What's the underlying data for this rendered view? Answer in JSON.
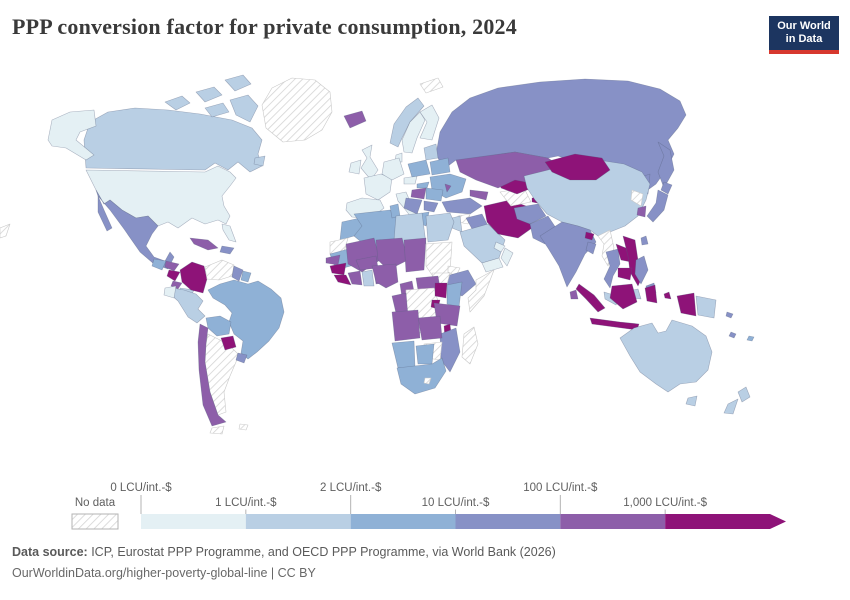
{
  "title": "PPP conversion factor for private consumption, 2024",
  "logo": {
    "line1": "Our World",
    "line2": "in Data",
    "bg_color": "#1c3560",
    "accent_color": "#d7382e"
  },
  "legend": {
    "no_data_label": "No data",
    "tick_labels": [
      "0 LCU/int.-$",
      "1 LCU/int.-$",
      "2 LCU/int.-$",
      "10 LCU/int.-$",
      "100 LCU/int.-$",
      "1,000 LCU/int.-$"
    ],
    "colors": [
      "#e4f0f4",
      "#b9cfe4",
      "#8fb1d6",
      "#8791c6",
      "#8d5ea9",
      "#8e1378"
    ],
    "no_data_pattern": "diagonal-hatch",
    "text_color": "#5f5f5f",
    "tick_color": "#b3b3b3"
  },
  "footer": {
    "source_label": "Data source:",
    "source_text": " ICP, Eurostat PPP Programme, and OECD PPP Programme, via World Bank (2026)",
    "license_line": "OurWorldinData.org/higher-poverty-global-line | CC BY"
  },
  "map": {
    "regions": {
      "greenland": "nd",
      "canada": 1,
      "alaska": 0,
      "united-states": 0,
      "mexico": 3,
      "guatemala": 2,
      "honduras": 4,
      "nicaragua": 5,
      "costa-rica": 4,
      "panama": 1,
      "cuba": 4,
      "hispaniola": 3,
      "argentina": "nd",
      "chile": 4,
      "tierra-del-fuego": "nd",
      "falkland-islands": "nd",
      "brazil": 2,
      "peru": 1,
      "ecuador": 0,
      "bolivia": 2,
      "paraguay": 5,
      "uruguay": 3,
      "colombia": 5,
      "venezuela": "nd",
      "guyana": 3,
      "suriname": 2,
      "pacific-sliver": "nd",
      "iceland": 4,
      "svalbard": "nd",
      "norway": 1,
      "sweden": 0,
      "finland": 0,
      "united-kingdom": 0,
      "ireland": 0,
      "denmark": 0,
      "spain-portugal": 0,
      "france": 0,
      "germany": 0,
      "italy": 0,
      "czechia": 0,
      "poland": 2,
      "baltics": 1,
      "belarus": 2,
      "ukraine": 2,
      "slovakia": 2,
      "hungary": 4,
      "romania": 2,
      "moldova": 4,
      "balkans": 3,
      "bulgaria": 3,
      "greece": 2,
      "russia": 3,
      "turkey": 3,
      "caucasus": 4,
      "syria": "nd",
      "iraq": 3,
      "jordan-israel": 1,
      "saudi-arabia": 1,
      "yemen": 0,
      "oman": 0,
      "uae": 0,
      "iran": 5,
      "turkmenistan": "nd",
      "uzbekistan": 5,
      "kazakhstan": 4,
      "kyrgyzstan": "nd",
      "tajikistan": 5,
      "afghanistan": 3,
      "pakistan": 3,
      "india": 3,
      "bhutan": 5,
      "bangladesh": 3,
      "sri-lanka": 4,
      "myanmar": "nd",
      "thailand": 3,
      "laos": 5,
      "vietnam": 5,
      "cambodia": 5,
      "malaysia": 1,
      "china": 1,
      "mongolia": 5,
      "north-korea": "nd",
      "south-korea": 4,
      "japan": 3,
      "taiwan": 3,
      "philippines": 3,
      "indonesia": 5,
      "papua-new-guinea": 1,
      "solomon-islands": 3,
      "vanuatu": 3,
      "fiji": 2,
      "australia": 1,
      "tasmania": 1,
      "new-zealand": 1,
      "morocco": 2,
      "western-sahara": "nd",
      "algeria": 2,
      "tunisia": 2,
      "libya": 1,
      "egypt": 1,
      "mauritania": 2,
      "mali": 4,
      "niger": 4,
      "chad": 4,
      "sudan": "nd",
      "eritrea": "nd",
      "ethiopia": 3,
      "somalia": "nd",
      "south-sudan": "nd",
      "senegal": 4,
      "guinea": 5,
      "sierra-leone-liberia": 5,
      "cote-divoire": 4,
      "ghana": 1,
      "benin-togo": 4,
      "burkina-faso": 4,
      "nigeria": 4,
      "cameroon": 4,
      "central-african-republic": 4,
      "dr-congo": "nd",
      "congo-gabon": 4,
      "uganda": 5,
      "kenya": 2,
      "rwanda-burundi": 5,
      "tanzania": 4,
      "malawi": 5,
      "mozambique": 3,
      "zimbabwe": "nd",
      "zambia": 4,
      "angola": 4,
      "namibia": 2,
      "botswana": 2,
      "south-africa": 2,
      "lesotho": "nd",
      "madagascar": "nd"
    }
  },
  "chart_data": {
    "type": "choropleth",
    "title": "PPP conversion factor for private consumption, 2024",
    "unit": "LCU/int.-$",
    "scale": "log-binned",
    "legend_position": "bottom",
    "bins": [
      {
        "range": "0–1 LCU/int.-$",
        "color": "#e4f0f4",
        "countries": [
          "United States",
          "United Kingdom",
          "Ireland",
          "France",
          "Germany",
          "Spain",
          "Portugal",
          "Italy",
          "Sweden",
          "Finland",
          "Denmark",
          "Czechia",
          "Ecuador",
          "Yemen",
          "Oman",
          "United Arab Emirates"
        ]
      },
      {
        "range": "1–2 LCU/int.-$",
        "color": "#b9cfe4",
        "countries": [
          "Canada",
          "Norway",
          "Baltic states",
          "Australia",
          "New Zealand",
          "China",
          "Malaysia",
          "Saudi Arabia",
          "Jordan",
          "Israel",
          "Egypt",
          "Libya",
          "Ghana",
          "Panama",
          "Peru",
          "Papua New Guinea"
        ]
      },
      {
        "range": "2–10 LCU/int.-$",
        "color": "#8fb1d6",
        "countries": [
          "Brazil",
          "Bolivia",
          "Suriname",
          "Guatemala",
          "Morocco",
          "Algeria",
          "Tunisia",
          "Mauritania",
          "Kenya",
          "Namibia",
          "Botswana",
          "South Africa",
          "Poland",
          "Belarus",
          "Ukraine",
          "Romania",
          "Slovakia",
          "Greece",
          "Fiji"
        ]
      },
      {
        "range": "10–100 LCU/int.-$",
        "color": "#8791c6",
        "countries": [
          "Mexico",
          "Dominican Republic",
          "Uruguay",
          "Guyana",
          "Russia",
          "Turkey",
          "Iraq",
          "Afghanistan",
          "Pakistan",
          "India",
          "Bangladesh",
          "Thailand",
          "Japan",
          "Taiwan",
          "Philippines",
          "Ethiopia",
          "Mozambique",
          "Serbia",
          "Bulgaria",
          "Solomon Islands",
          "Vanuatu"
        ]
      },
      {
        "range": "100–1,000 LCU/int.-$",
        "color": "#8d5ea9",
        "countries": [
          "Chile",
          "Cuba",
          "Honduras",
          "Costa Rica",
          "Iceland",
          "Hungary",
          "Moldova",
          "Caucasus states",
          "Kazakhstan",
          "South Korea",
          "Sri Lanka",
          "Senegal",
          "Mali",
          "Burkina Faso",
          "Niger",
          "Chad",
          "Côte d'Ivoire",
          "Benin",
          "Togo",
          "Nigeria",
          "Cameroon",
          "Central African Republic",
          "Congo",
          "Gabon",
          "Angola",
          "Zambia",
          "Tanzania"
        ]
      },
      {
        "range": "1,000+ LCU/int.-$",
        "color": "#8e1378",
        "countries": [
          "Colombia",
          "Paraguay",
          "Nicaragua",
          "Guinea",
          "Sierra Leone",
          "Liberia",
          "Uganda",
          "Rwanda",
          "Burundi",
          "Malawi",
          "Iran",
          "Uzbekistan",
          "Tajikistan",
          "Mongolia",
          "Bhutan",
          "Vietnam",
          "Laos",
          "Cambodia",
          "Indonesia"
        ]
      },
      {
        "range": "No data",
        "pattern": "diagonal-hatch",
        "countries": [
          "Greenland",
          "Venezuela",
          "Argentina",
          "Western Sahara",
          "Sudan",
          "South Sudan",
          "Eritrea",
          "Somalia",
          "DR Congo",
          "Zimbabwe",
          "Madagascar",
          "Syria",
          "Turkmenistan",
          "Kyrgyzstan",
          "Myanmar",
          "North Korea",
          "Svalbard"
        ]
      }
    ]
  }
}
